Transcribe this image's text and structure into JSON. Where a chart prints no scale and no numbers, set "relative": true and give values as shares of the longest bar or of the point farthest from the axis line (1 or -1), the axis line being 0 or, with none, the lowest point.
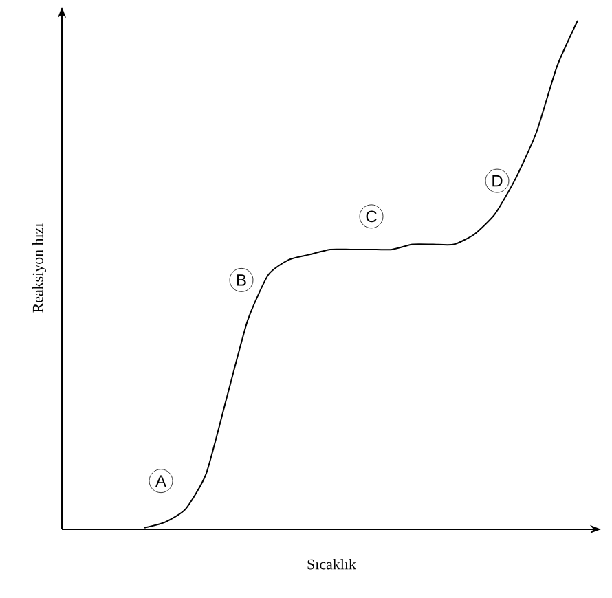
{
  "chart_data": {
    "type": "line",
    "relative": true,
    "xlabel": "Sıcaklık",
    "ylabel": "Reaksiyon hızı",
    "categories": [
      null,
      null,
      null,
      null,
      null,
      null,
      null,
      null,
      null,
      null,
      null,
      null,
      null,
      null,
      null,
      null,
      null,
      null,
      null,
      null,
      null,
      null,
      null,
      null,
      null,
      null,
      null
    ],
    "values": [
      null,
      null,
      null,
      null,
      0.003,
      0.014,
      0.04,
      0.11,
      0.26,
      0.41,
      0.5,
      0.53,
      0.54,
      0.55,
      0.55,
      0.55,
      0.55,
      0.56,
      0.56,
      0.56,
      0.58,
      0.62,
      0.69,
      0.78,
      0.91,
      1.0,
      null
    ],
    "color": "#000000",
    "annotations": [
      "A",
      "B",
      "C",
      "D"
    ]
  }
}
